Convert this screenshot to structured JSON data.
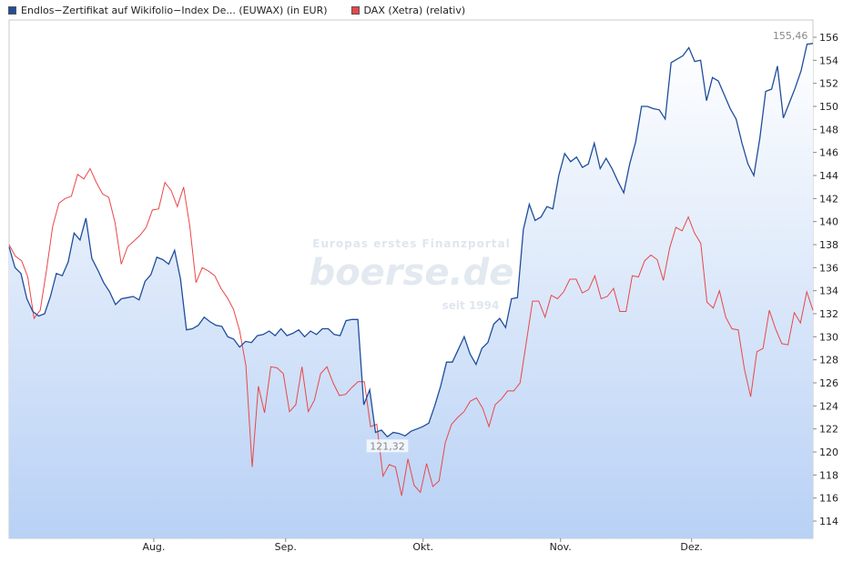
{
  "chart_data": {
    "type": "line",
    "legend": [
      {
        "name": "Endlos−Zertifikat auf Wikifolio−Index De... (EUWAX) (in EUR)",
        "color": "#1f4e9c"
      },
      {
        "name": "DAX (Xetra) (relativ)",
        "color": "#e8474a"
      }
    ],
    "x_ticks": [
      "Aug.",
      "Sep.",
      "Okt.",
      "Nov.",
      "Dez."
    ],
    "y_ticks": [
      "114",
      "116",
      "118",
      "120",
      "122",
      "124",
      "126",
      "128",
      "130",
      "132",
      "134",
      "136",
      "138",
      "140",
      "142",
      "144",
      "146",
      "148",
      "150",
      "152",
      "154",
      "156"
    ],
    "ylim": [
      112.5,
      157.5
    ],
    "annotations": {
      "max": "155,46",
      "min": "121,32"
    },
    "watermark": {
      "line1": "Europas erstes Finanzportal",
      "line2": "boerse.de",
      "line3": "seit 1994"
    },
    "series": [
      {
        "name": "Endlos−Zertifikat auf Wikifolio−Index De... (EUWAX) (in EUR)",
        "color": "#1f4e9c",
        "values": [
          137.8,
          136.0,
          135.5,
          133.3,
          132.2,
          131.8,
          132.0,
          133.5,
          135.5,
          135.3,
          136.5,
          139.0,
          138.4,
          140.3,
          136.8,
          135.8,
          134.7,
          133.9,
          132.8,
          133.3,
          133.4,
          133.5,
          133.2,
          134.8,
          135.4,
          136.9,
          136.7,
          136.3,
          137.5,
          135.0,
          130.6,
          130.7,
          131.0,
          131.7,
          131.3,
          131.0,
          130.9,
          130.0,
          129.8,
          129.1,
          129.6,
          129.5,
          130.1,
          130.2,
          130.5,
          130.1,
          130.7,
          130.1,
          130.3,
          130.6,
          130.0,
          130.5,
          130.2,
          130.7,
          130.7,
          130.2,
          130.1,
          131.4,
          131.5,
          131.5,
          124.1,
          125.4,
          121.7,
          121.9,
          121.32,
          121.7,
          121.6,
          121.4,
          121.8,
          122.0,
          122.2,
          122.5,
          124.0,
          125.7,
          127.8,
          127.8,
          128.9,
          130.0,
          128.5,
          127.6,
          129.0,
          129.5,
          131.1,
          131.6,
          130.8,
          133.3,
          133.4,
          139.3,
          141.5,
          140.1,
          140.4,
          141.3,
          141.1,
          144.0,
          145.9,
          145.2,
          145.6,
          144.7,
          145.0,
          146.8,
          144.6,
          145.5,
          144.6,
          143.5,
          142.5,
          145.0,
          146.9,
          150.0,
          150.0,
          149.8,
          149.7,
          148.9,
          153.8,
          154.1,
          154.4,
          155.1,
          153.9,
          154.0,
          150.5,
          152.5,
          152.2,
          151.0,
          149.8,
          148.9,
          146.8,
          145.0,
          144.0,
          147.2,
          151.3,
          151.5,
          153.5,
          149.0,
          150.3,
          151.6,
          153.1,
          155.4,
          155.46
        ]
      },
      {
        "name": "DAX (Xetra) (relativ)",
        "color": "#e8474a",
        "values": [
          138.0,
          137.0,
          136.6,
          135.2,
          131.6,
          132.3,
          135.8,
          139.6,
          141.6,
          142.0,
          142.2,
          144.1,
          143.7,
          144.6,
          143.4,
          142.4,
          142.1,
          139.9,
          136.3,
          137.8,
          138.3,
          138.8,
          139.5,
          141.0,
          141.1,
          143.4,
          142.7,
          141.3,
          143.0,
          139.6,
          134.7,
          136.0,
          135.7,
          135.3,
          134.2,
          133.4,
          132.4,
          130.5,
          127.5,
          118.7,
          125.7,
          123.4,
          127.4,
          127.3,
          126.8,
          123.5,
          124.1,
          127.4,
          123.5,
          124.5,
          126.8,
          127.4,
          126.0,
          124.9,
          125.0,
          125.6,
          126.1,
          126.1,
          122.2,
          122.4,
          117.9,
          118.9,
          118.7,
          116.2,
          119.4,
          117.1,
          116.5,
          119.0,
          117.0,
          117.5,
          120.8,
          122.4,
          123.0,
          123.5,
          124.4,
          124.7,
          123.8,
          122.2,
          124.1,
          124.6,
          125.3,
          125.3,
          126.0,
          129.5,
          133.1,
          133.1,
          131.7,
          133.6,
          133.3,
          133.9,
          135.0,
          135.0,
          133.8,
          134.1,
          135.3,
          133.3,
          133.5,
          134.2,
          132.2,
          132.2,
          135.3,
          135.2,
          136.6,
          137.1,
          136.7,
          134.9,
          137.7,
          139.5,
          139.2,
          140.4,
          139.0,
          138.1,
          133.0,
          132.5,
          134.0,
          131.7,
          130.7,
          130.6,
          127.2,
          124.8,
          128.7,
          129.0,
          132.3,
          130.7,
          129.4,
          129.3,
          132.1,
          131.2,
          133.9,
          132.3
        ]
      }
    ]
  }
}
